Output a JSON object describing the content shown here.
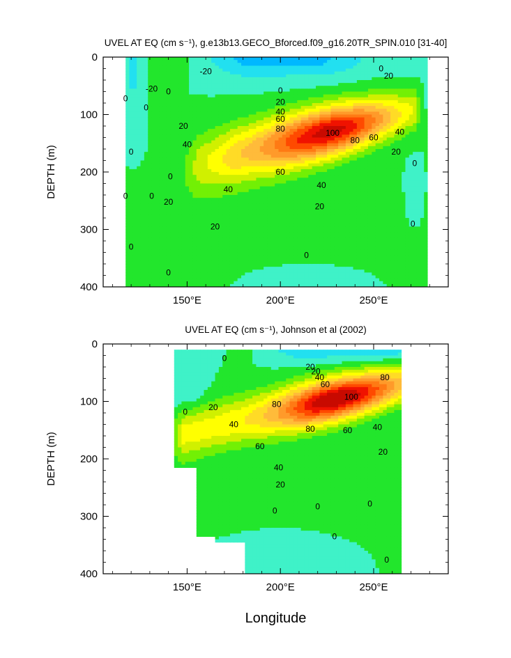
{
  "chart_data": [
    {
      "type": "contour",
      "title": "UVEL AT EQ (cm s⁻¹), g.e13b13.GECO_Bforced.f09_g16.20TR_SPIN.010 [31-40]",
      "xlabel": "",
      "ylabel": "DEPTH (m)",
      "xlim": [
        105,
        290
      ],
      "ylim": [
        400,
        0
      ],
      "x_ticks": [
        {
          "value": 150,
          "label": "150°E"
        },
        {
          "value": 200,
          "label": "200°E"
        },
        {
          "value": 250,
          "label": "250°E"
        }
      ],
      "y_ticks": [
        {
          "value": 0,
          "label": "0"
        },
        {
          "value": 100,
          "label": "100"
        },
        {
          "value": 200,
          "label": "200"
        },
        {
          "value": 300,
          "label": "300"
        },
        {
          "value": 400,
          "label": "400"
        }
      ],
      "data_x_range": [
        117,
        279
      ],
      "core": {
        "lon": 226,
        "depth": 125,
        "max_speed": 100
      },
      "contour_interval": 10,
      "contour_labels": [
        {
          "text": "-20",
          "lon": 160,
          "depth": 25
        },
        {
          "text": "-20",
          "lon": 131,
          "depth": 55
        },
        {
          "text": "0",
          "lon": 254,
          "depth": 20
        },
        {
          "text": "20",
          "lon": 258,
          "depth": 33
        },
        {
          "text": "0",
          "lon": 140,
          "depth": 60
        },
        {
          "text": "0",
          "lon": 200,
          "depth": 58
        },
        {
          "text": "20",
          "lon": 200,
          "depth": 78
        },
        {
          "text": "40",
          "lon": 200,
          "depth": 95
        },
        {
          "text": "60",
          "lon": 200,
          "depth": 108
        },
        {
          "text": "80",
          "lon": 200,
          "depth": 125
        },
        {
          "text": "100",
          "lon": 228,
          "depth": 132
        },
        {
          "text": "80",
          "lon": 240,
          "depth": 145
        },
        {
          "text": "60",
          "lon": 250,
          "depth": 140
        },
        {
          "text": "40",
          "lon": 264,
          "depth": 130
        },
        {
          "text": "20",
          "lon": 262,
          "depth": 165
        },
        {
          "text": "0",
          "lon": 272,
          "depth": 185
        },
        {
          "text": "20",
          "lon": 148,
          "depth": 120
        },
        {
          "text": "40",
          "lon": 150,
          "depth": 152
        },
        {
          "text": "60",
          "lon": 200,
          "depth": 200
        },
        {
          "text": "40",
          "lon": 172,
          "depth": 230
        },
        {
          "text": "40",
          "lon": 222,
          "depth": 223
        },
        {
          "text": "20",
          "lon": 221,
          "depth": 260
        },
        {
          "text": "20",
          "lon": 140,
          "depth": 252
        },
        {
          "text": "20",
          "lon": 165,
          "depth": 295
        },
        {
          "text": "0",
          "lon": 141,
          "depth": 208
        },
        {
          "text": "0",
          "lon": 131,
          "depth": 242
        },
        {
          "text": "0",
          "lon": 117,
          "depth": 242
        },
        {
          "text": "0",
          "lon": 120,
          "depth": 165
        },
        {
          "text": "0",
          "lon": 117,
          "depth": 72
        },
        {
          "text": "0",
          "lon": 128,
          "depth": 88
        },
        {
          "text": "0",
          "lon": 120,
          "depth": 330
        },
        {
          "text": "0",
          "lon": 140,
          "depth": 375
        },
        {
          "text": "0",
          "lon": 214,
          "depth": 345
        },
        {
          "text": "0",
          "lon": 271,
          "depth": 290
        }
      ]
    },
    {
      "type": "contour",
      "title": "UVEL AT EQ (cm s⁻¹), Johnson et al (2002)",
      "xlabel": "Longitude",
      "ylabel": "DEPTH (m)",
      "xlim": [
        105,
        290
      ],
      "ylim": [
        400,
        0
      ],
      "x_ticks": [
        {
          "value": 150,
          "label": "150°E"
        },
        {
          "value": 200,
          "label": "200°E"
        },
        {
          "value": 250,
          "label": "250°E"
        }
      ],
      "y_ticks": [
        {
          "value": 0,
          "label": "0"
        },
        {
          "value": 100,
          "label": "100"
        },
        {
          "value": 200,
          "label": "200"
        },
        {
          "value": 300,
          "label": "300"
        },
        {
          "value": 400,
          "label": "400"
        }
      ],
      "data_x_range": [
        143,
        265
      ],
      "missing_region_bottom_left": [
        {
          "lon": [
            143,
            156
          ],
          "depth": [
            215,
            400
          ]
        },
        {
          "lon": [
            156,
            165
          ],
          "depth": [
            335,
            400
          ]
        },
        {
          "lon": [
            165,
            181
          ],
          "depth": [
            345,
            400
          ]
        }
      ],
      "core": {
        "lon": 228,
        "depth": 105,
        "max_speed": 100
      },
      "contour_interval": 10,
      "contour_labels": [
        {
          "text": "0",
          "lon": 170,
          "depth": 25
        },
        {
          "text": "0",
          "lon": 149,
          "depth": 118
        },
        {
          "text": "20",
          "lon": 216,
          "depth": 40
        },
        {
          "text": "20",
          "lon": 219,
          "depth": 48
        },
        {
          "text": "40",
          "lon": 221,
          "depth": 58
        },
        {
          "text": "60",
          "lon": 224,
          "depth": 70
        },
        {
          "text": "80",
          "lon": 256,
          "depth": 58
        },
        {
          "text": "100",
          "lon": 238,
          "depth": 92
        },
        {
          "text": "80",
          "lon": 198,
          "depth": 105
        },
        {
          "text": "80",
          "lon": 216,
          "depth": 148
        },
        {
          "text": "60",
          "lon": 236,
          "depth": 150
        },
        {
          "text": "40",
          "lon": 252,
          "depth": 145
        },
        {
          "text": "20",
          "lon": 255,
          "depth": 188
        },
        {
          "text": "20",
          "lon": 164,
          "depth": 110
        },
        {
          "text": "40",
          "lon": 175,
          "depth": 140
        },
        {
          "text": "60",
          "lon": 189,
          "depth": 178
        },
        {
          "text": "40",
          "lon": 199,
          "depth": 215
        },
        {
          "text": "20",
          "lon": 200,
          "depth": 245
        },
        {
          "text": "0",
          "lon": 197,
          "depth": 290
        },
        {
          "text": "0",
          "lon": 220,
          "depth": 283
        },
        {
          "text": "0",
          "lon": 248,
          "depth": 278
        },
        {
          "text": "0",
          "lon": 229,
          "depth": 335
        },
        {
          "text": "0",
          "lon": 257,
          "depth": 376
        }
      ]
    }
  ]
}
